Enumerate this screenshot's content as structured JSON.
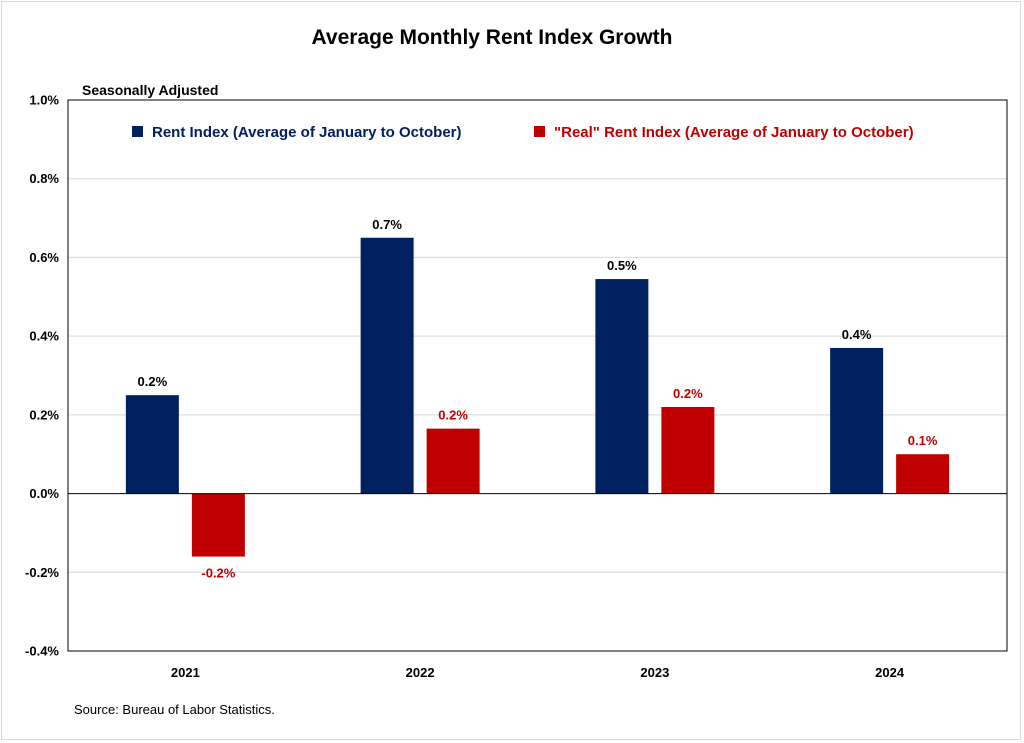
{
  "chart_data": {
    "type": "bar",
    "title": "Average Monthly Rent Index Growth",
    "subtitle": "Seasonally Adjusted",
    "categories": [
      "2021",
      "2022",
      "2023",
      "2024"
    ],
    "series": [
      {
        "name": "Rent Index (Average of January to October)",
        "color": "#002060",
        "values": [
          0.25,
          0.65,
          0.545,
          0.37
        ],
        "labels": [
          "0.2%",
          "0.7%",
          "0.5%",
          "0.4%"
        ]
      },
      {
        "name": "\"Real\" Rent Index (Average of January to October)",
        "color": "#c00000",
        "values": [
          -0.16,
          0.165,
          0.22,
          0.1
        ],
        "labels": [
          "-0.2%",
          "0.2%",
          "0.2%",
          "0.1%"
        ]
      }
    ],
    "ylim": [
      -0.4,
      1.0
    ],
    "yticks": [
      -0.4,
      -0.2,
      0.0,
      0.2,
      0.4,
      0.6,
      0.8,
      1.0
    ],
    "ytick_labels": [
      "-0.4%",
      "-0.2%",
      "0.0%",
      "0.2%",
      "0.4%",
      "0.6%",
      "0.8%",
      "1.0%"
    ],
    "grid": true,
    "legend": "top",
    "source": "Source: Bureau of Labor Statistics."
  }
}
